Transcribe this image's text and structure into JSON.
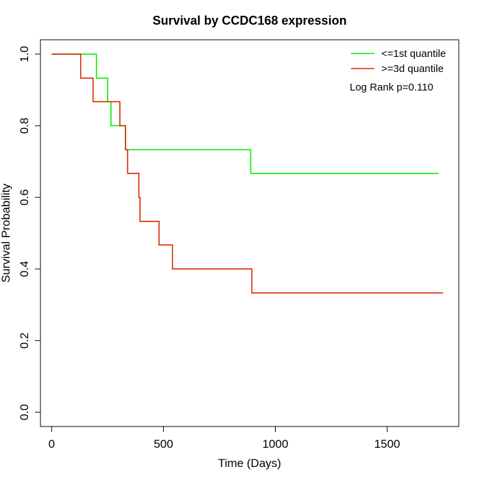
{
  "chart_data": {
    "type": "line",
    "title": "Survival by CCDC168 expression",
    "xlabel": "Time (Days)",
    "ylabel": "Survival Probability",
    "xlim": [
      -50,
      1820
    ],
    "ylim": [
      -0.04,
      1.04
    ],
    "xticks": [
      0,
      500,
      1000,
      1500
    ],
    "yticks": [
      0.0,
      0.2,
      0.4,
      0.6,
      0.8,
      1.0
    ],
    "xtick_labels": [
      "0",
      "500",
      "1000",
      "1500"
    ],
    "ytick_labels": [
      "0.0",
      "0.2",
      "0.4",
      "0.6",
      "0.8",
      "1.0"
    ],
    "step": true,
    "grid": false,
    "legend_position": "top-right",
    "annotation": "Log Rank p=0.110",
    "series": [
      {
        "name": "<=1st quantile",
        "color": "#00ee00",
        "x": [
          0,
          200,
          200,
          250,
          250,
          265,
          265,
          310,
          310,
          330,
          330,
          890,
          890,
          1730
        ],
        "y": [
          1.0,
          1.0,
          0.933,
          0.933,
          0.867,
          0.867,
          0.8,
          0.8,
          0.8,
          0.8,
          0.733,
          0.733,
          0.667,
          0.667
        ]
      },
      {
        "name": ">=3d quantile",
        "color": "#dd2200",
        "x": [
          0,
          130,
          130,
          185,
          185,
          305,
          305,
          330,
          330,
          340,
          340,
          390,
          390,
          395,
          395,
          480,
          480,
          540,
          540,
          895,
          895,
          1750
        ],
        "y": [
          1.0,
          1.0,
          0.933,
          0.933,
          0.867,
          0.867,
          0.8,
          0.8,
          0.733,
          0.733,
          0.667,
          0.667,
          0.6,
          0.6,
          0.533,
          0.533,
          0.467,
          0.467,
          0.4,
          0.4,
          0.333,
          0.333
        ]
      }
    ]
  }
}
